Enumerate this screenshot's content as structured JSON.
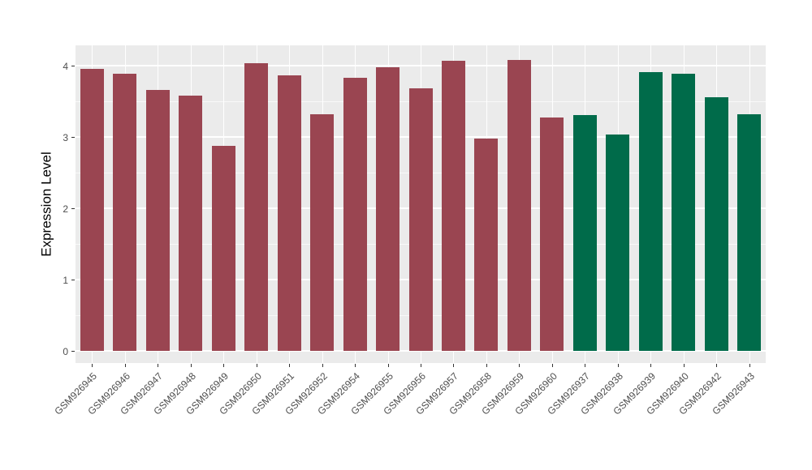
{
  "chart_data": {
    "type": "bar",
    "title": "",
    "xlabel": "",
    "ylabel": "Expression Level",
    "categories": [
      "GSM926945",
      "GSM926946",
      "GSM926947",
      "GSM926948",
      "GSM926949",
      "GSM926950",
      "GSM926951",
      "GSM926952",
      "GSM926954",
      "GSM926955",
      "GSM926956",
      "GSM926957",
      "GSM926958",
      "GSM926959",
      "GSM926960",
      "GSM926937",
      "GSM926938",
      "GSM926939",
      "GSM926940",
      "GSM926942",
      "GSM926943"
    ],
    "values": [
      3.95,
      3.88,
      3.65,
      3.58,
      2.87,
      4.03,
      3.86,
      3.32,
      3.83,
      3.97,
      3.68,
      4.06,
      2.97,
      4.07,
      3.27,
      3.3,
      3.03,
      3.9,
      3.88,
      3.55,
      3.31
    ],
    "bar_color_groups": [
      "maroon",
      "maroon",
      "maroon",
      "maroon",
      "maroon",
      "maroon",
      "maroon",
      "maroon",
      "maroon",
      "maroon",
      "maroon",
      "maroon",
      "maroon",
      "maroon",
      "maroon",
      "green",
      "green",
      "green",
      "green",
      "green",
      "green"
    ],
    "palette": {
      "maroon": "#9A4551",
      "green": "#006B4A"
    },
    "yticks": [
      0,
      1,
      2,
      3,
      4
    ],
    "yticks_minor": [
      0.5,
      1.5,
      2.5,
      3.5
    ],
    "ylim": [
      -0.2,
      4.28
    ],
    "grid": true,
    "legend_position": "none",
    "style": {
      "panel_bg": "#EBEBEB",
      "grid_color": "#FFFFFF",
      "axis_text_color": "#4D4D4D",
      "axis_title_color": "#000000",
      "tick_mark_color": "#333333",
      "background": "#FFFFFF"
    }
  }
}
